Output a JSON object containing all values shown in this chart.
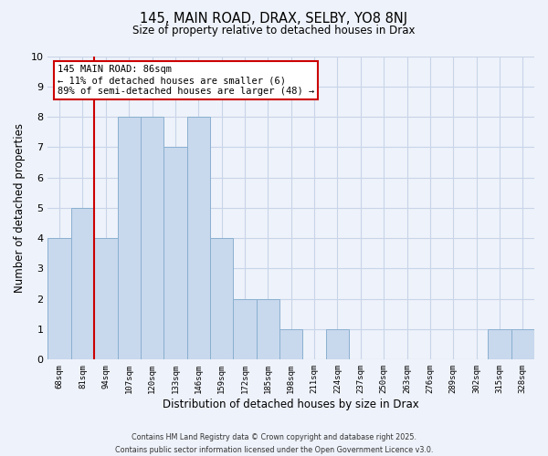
{
  "title": "145, MAIN ROAD, DRAX, SELBY, YO8 8NJ",
  "subtitle": "Size of property relative to detached houses in Drax",
  "xlabel": "Distribution of detached houses by size in Drax",
  "ylabel": "Number of detached properties",
  "bin_labels": [
    "68sqm",
    "81sqm",
    "94sqm",
    "107sqm",
    "120sqm",
    "133sqm",
    "146sqm",
    "159sqm",
    "172sqm",
    "185sqm",
    "198sqm",
    "211sqm",
    "224sqm",
    "237sqm",
    "250sqm",
    "263sqm",
    "276sqm",
    "289sqm",
    "302sqm",
    "315sqm",
    "328sqm"
  ],
  "bar_heights": [
    4,
    5,
    4,
    8,
    8,
    7,
    8,
    4,
    2,
    2,
    1,
    0,
    1,
    0,
    0,
    0,
    0,
    0,
    0,
    1,
    1
  ],
  "bar_color": "#c8d8ed",
  "bar_edge_color": "#8ab0d0",
  "vline_x": 1.5,
  "vline_color": "#cc0000",
  "annotation_title": "145 MAIN ROAD: 86sqm",
  "annotation_line1": "← 11% of detached houses are smaller (6)",
  "annotation_line2": "89% of semi-detached houses are larger (48) →",
  "annotation_box_facecolor": "white",
  "annotation_box_edgecolor": "#cc0000",
  "ylim": [
    0,
    10
  ],
  "yticks": [
    0,
    1,
    2,
    3,
    4,
    5,
    6,
    7,
    8,
    9,
    10
  ],
  "grid_color": "#c8d4e8",
  "footer_line1": "Contains HM Land Registry data © Crown copyright and database right 2025.",
  "footer_line2": "Contains public sector information licensed under the Open Government Licence v3.0.",
  "bg_color": "#eef2fa"
}
